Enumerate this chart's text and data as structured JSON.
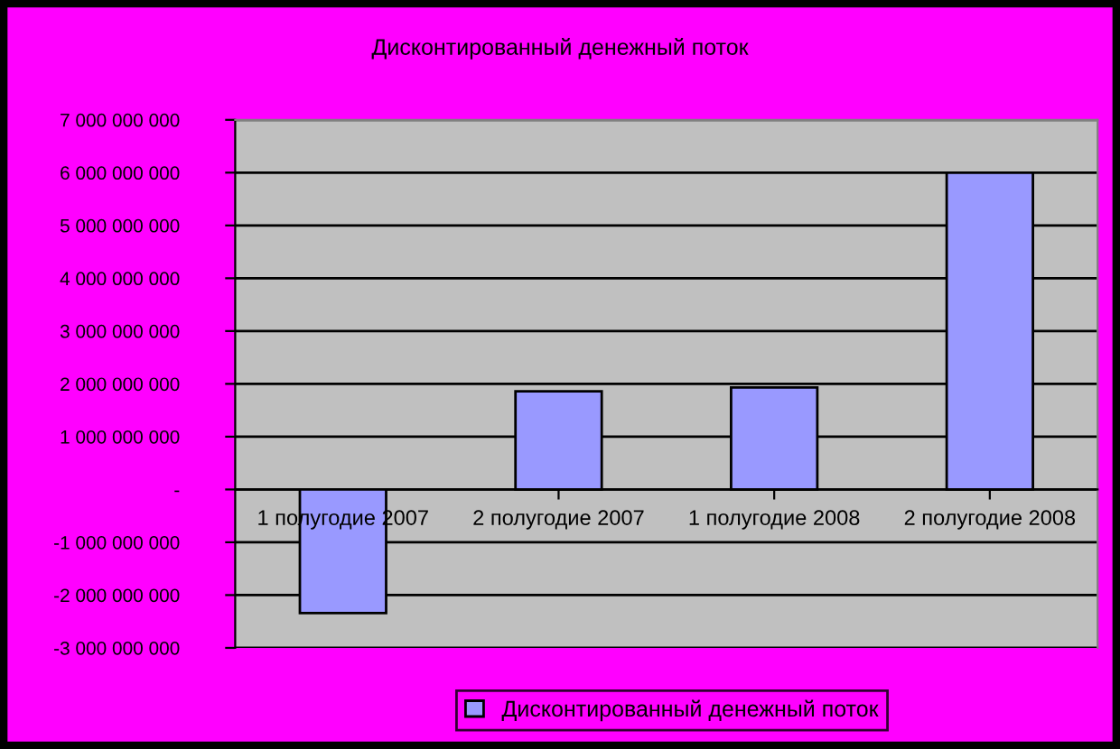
{
  "chart_data": {
    "type": "bar",
    "title": "Дисконтированный денежный поток",
    "categories": [
      "1 полугодие 2007",
      "2 полугодие 2007",
      "1 полугодие 2008",
      "2 полугодие 2008"
    ],
    "series": [
      {
        "name": "Дисконтированный денежный поток",
        "color": "#9999ff",
        "values": [
          -2340000000,
          1860000000,
          1930000000,
          6000000000
        ]
      }
    ],
    "ylim": [
      -3000000000,
      7000000000
    ],
    "yticks": [
      {
        "value": -3000000000,
        "label": "-3 000 000 000"
      },
      {
        "value": -2000000000,
        "label": "-2 000 000 000"
      },
      {
        "value": -1000000000,
        "label": "-1 000 000 000"
      },
      {
        "value": 0,
        "label": "-"
      },
      {
        "value": 1000000000,
        "label": "1 000 000 000"
      },
      {
        "value": 2000000000,
        "label": "2 000 000 000"
      },
      {
        "value": 3000000000,
        "label": "3 000 000 000"
      },
      {
        "value": 4000000000,
        "label": "4 000 000 000"
      },
      {
        "value": 5000000000,
        "label": "5 000 000 000"
      },
      {
        "value": 6000000000,
        "label": "6 000 000 000"
      },
      {
        "value": 7000000000,
        "label": "7 000 000 000"
      }
    ],
    "grid": "y",
    "legend": "bottom"
  }
}
